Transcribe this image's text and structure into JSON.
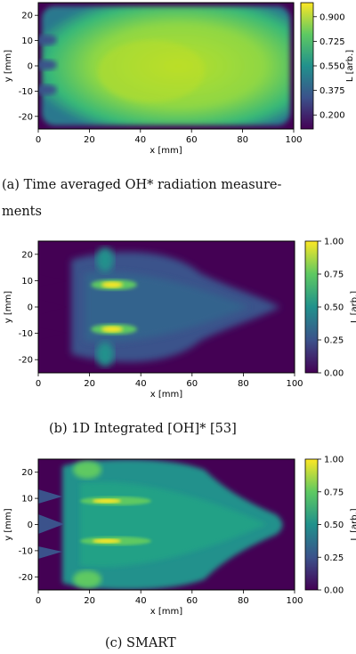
{
  "colors": {
    "viridis_low": "#440154",
    "viridis_mid": "#21918c",
    "viridis_high": "#fde725"
  },
  "chart_data": [
    {
      "type": "heatmap",
      "caption_line1": "(a) Time averaged OH* radiation measure-",
      "caption_line2": "ments",
      "xlabel": "x [mm]",
      "ylabel": "y [mm]",
      "colorbar_label": "L [arb.]",
      "xlim": [
        0,
        100
      ],
      "ylim": [
        -25,
        25
      ],
      "xticks": [
        "0",
        "20",
        "40",
        "60",
        "80",
        "100"
      ],
      "yticks": [
        "20",
        "10",
        "0",
        "-10",
        "-20"
      ],
      "cticks": [
        "0.900",
        "0.725",
        "0.550",
        "0.375",
        "0.200"
      ],
      "crange": [
        0.1,
        1.0
      ],
      "colormap": "viridis"
    },
    {
      "type": "heatmap",
      "caption_line1": "(b) 1D Integrated [OH]* [53]",
      "xlabel": "x [mm]",
      "ylabel": "y [mm]",
      "colorbar_label": "L [arb.]",
      "xlim": [
        0,
        100
      ],
      "ylim": [
        -25,
        25
      ],
      "xticks": [
        "0",
        "20",
        "40",
        "60",
        "80",
        "100"
      ],
      "yticks": [
        "20",
        "10",
        "0",
        "-10",
        "-20"
      ],
      "cticks": [
        "1.00",
        "0.75",
        "0.50",
        "0.25",
        "0.00"
      ],
      "crange": [
        0,
        1
      ],
      "colormap": "viridis"
    },
    {
      "type": "heatmap",
      "caption_line1": "(c) SMART",
      "xlabel": "x [mm]",
      "ylabel": "y [mm]",
      "colorbar_label": "L [arb.]",
      "xlim": [
        0,
        100
      ],
      "ylim": [
        -25,
        25
      ],
      "xticks": [
        "0",
        "20",
        "40",
        "60",
        "80",
        "100"
      ],
      "yticks": [
        "20",
        "10",
        "0",
        "-10",
        "-20"
      ],
      "cticks": [
        "1.00",
        "0.75",
        "0.50",
        "0.25",
        "0.00"
      ],
      "crange": [
        0,
        1
      ],
      "colormap": "viridis"
    }
  ]
}
